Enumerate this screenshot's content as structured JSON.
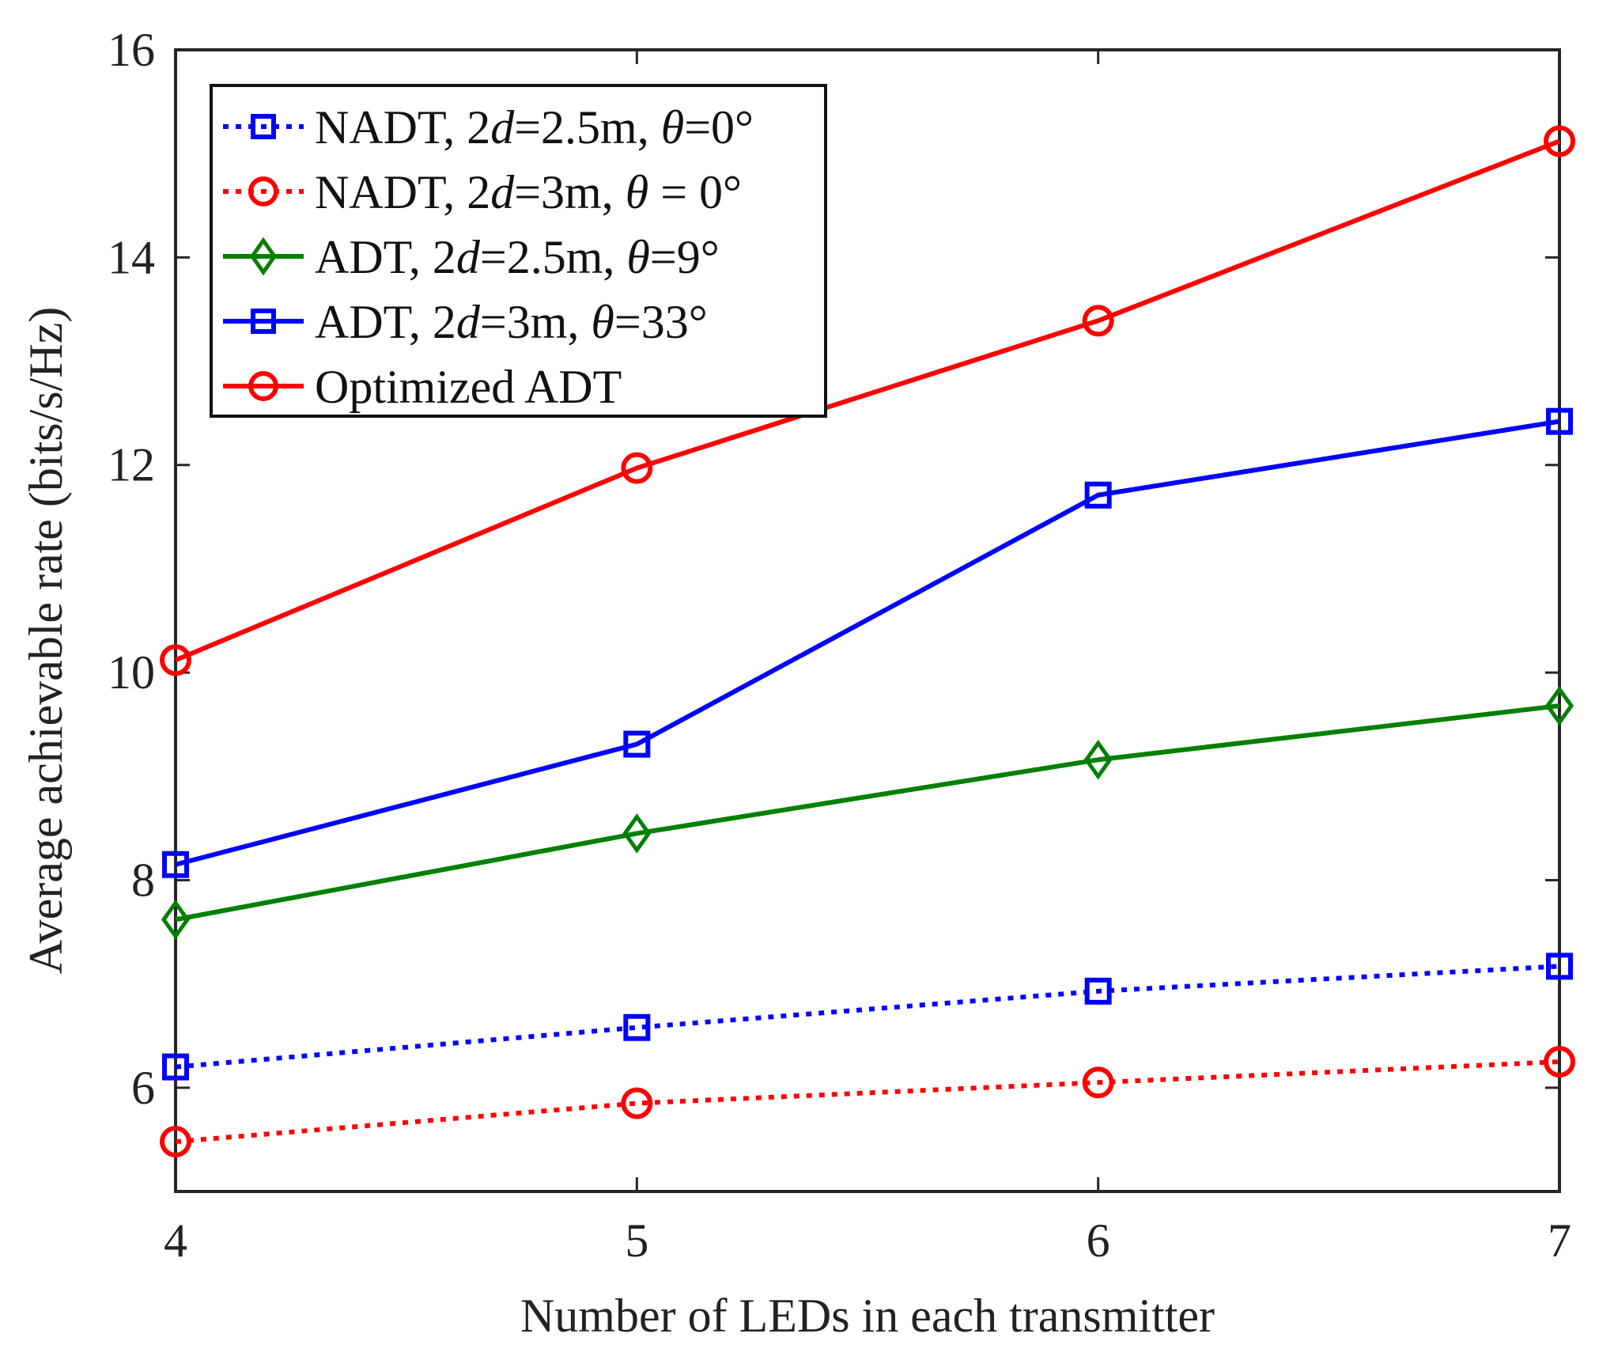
{
  "chart_data": {
    "type": "line",
    "title": "",
    "xlabel": "Number of LEDs in each transmitter",
    "ylabel": "Average achievable rate (bits/s/Hz)",
    "x": [
      4,
      5,
      6,
      7
    ],
    "xlim": [
      4,
      7
    ],
    "ylim": [
      5,
      16
    ],
    "xticks": [
      4,
      5,
      6,
      7
    ],
    "yticks": [
      6,
      8,
      10,
      12,
      14,
      16
    ],
    "grid": false,
    "legend_position": "top-left",
    "series": [
      {
        "name": "NADT, 2d=2.5m, θ=0°",
        "legend_parts": [
          {
            "t": "NADT, 2",
            "italic": false
          },
          {
            "t": "d",
            "italic": true
          },
          {
            "t": "=2.5m, ",
            "italic": false
          },
          {
            "t": "θ",
            "italic": true
          },
          {
            "t": "=0°",
            "italic": false
          }
        ],
        "values": [
          6.2,
          6.58,
          6.93,
          7.17
        ],
        "color": "#0000ff",
        "line_style": "dotted",
        "marker": "square"
      },
      {
        "name": "NADT, 2d=3m, θ = 0°",
        "legend_parts": [
          {
            "t": "NADT, 2",
            "italic": false
          },
          {
            "t": "d",
            "italic": true
          },
          {
            "t": "=3m, ",
            "italic": false
          },
          {
            "t": "θ",
            "italic": true
          },
          {
            "t": " = 0°",
            "italic": false
          }
        ],
        "values": [
          5.48,
          5.85,
          6.05,
          6.25
        ],
        "color": "#ff0000",
        "line_style": "dotted",
        "marker": "circle"
      },
      {
        "name": "ADT, 2d=2.5m, θ=9°",
        "legend_parts": [
          {
            "t": "ADT, 2",
            "italic": false
          },
          {
            "t": "d",
            "italic": true
          },
          {
            "t": "=2.5m, ",
            "italic": false
          },
          {
            "t": "θ",
            "italic": true
          },
          {
            "t": "=9°",
            "italic": false
          }
        ],
        "values": [
          7.62,
          8.45,
          9.16,
          9.68
        ],
        "color": "#008000",
        "line_style": "solid",
        "marker": "diamond"
      },
      {
        "name": "ADT, 2d=3m, θ=33°",
        "legend_parts": [
          {
            "t": "ADT, 2",
            "italic": false
          },
          {
            "t": "d",
            "italic": true
          },
          {
            "t": "=3m, ",
            "italic": false
          },
          {
            "t": "θ",
            "italic": true
          },
          {
            "t": "=33°",
            "italic": false
          }
        ],
        "values": [
          8.15,
          9.31,
          11.71,
          12.42
        ],
        "color": "#0000ff",
        "line_style": "solid",
        "marker": "square"
      },
      {
        "name": "Optimized ADT",
        "legend_parts": [
          {
            "t": "Optimized ADT",
            "italic": false
          }
        ],
        "values": [
          10.12,
          11.97,
          13.39,
          15.12
        ],
        "color": "#ff0000",
        "line_style": "solid",
        "marker": "circle"
      }
    ]
  }
}
